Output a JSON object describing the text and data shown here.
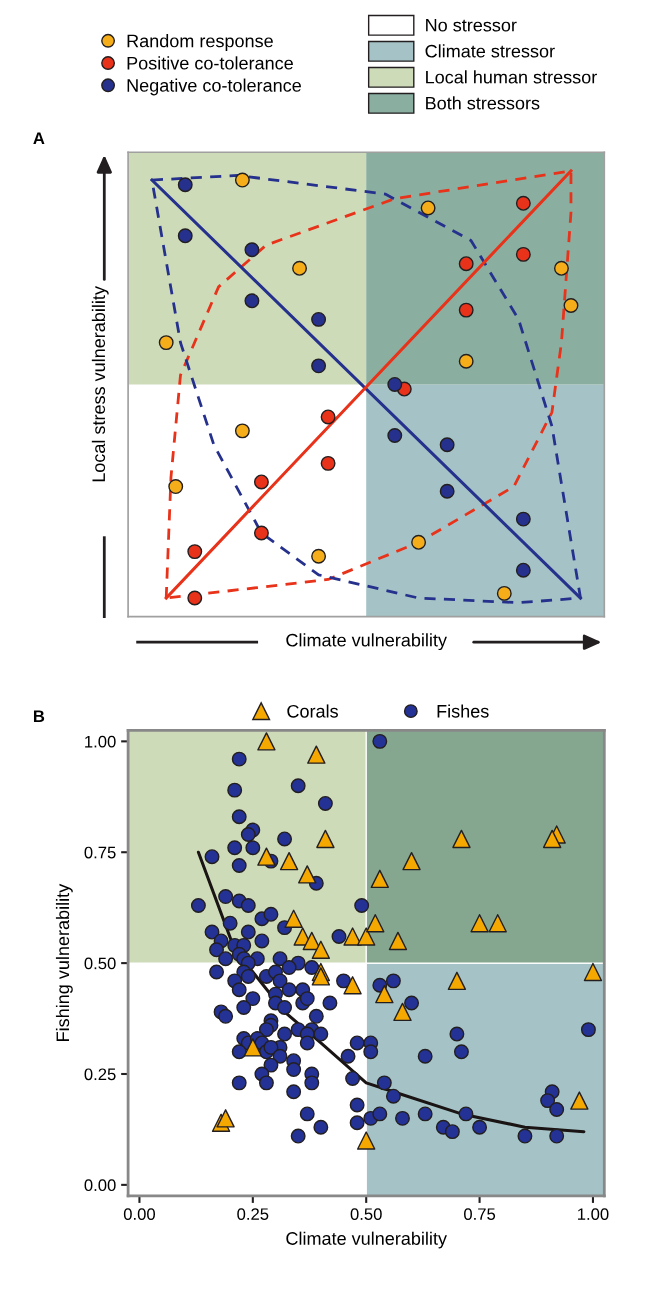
{
  "chart_data": [
    {
      "type": "other",
      "title": "A",
      "xlabel": "Climate vulnerability",
      "ylabel": "Local stress vulnerability",
      "legend": "top",
      "bands": [
        {
          "label": "No stressor",
          "color": "#ffffff"
        },
        {
          "label": "Climate stressor",
          "color": "#a5c3c6"
        },
        {
          "label": "Local human stressor",
          "color": "#cddbb9"
        },
        {
          "label": "Both stressors",
          "color": "#8aafa0"
        }
      ],
      "series": [
        {
          "name": "Random response",
          "color": "#f5ae1a",
          "marker": "circle"
        },
        {
          "name": "Positive co-tolerance",
          "color": "#e8321a",
          "marker": "circle"
        },
        {
          "name": "Negative co-tolerance",
          "color": "#25318c",
          "marker": "circle"
        }
      ]
    },
    {
      "type": "scatter",
      "title": "B",
      "xlabel": "Climate vulnerability",
      "ylabel": "Fishing vulnerability",
      "legend": "top",
      "grid": false,
      "xlim": [
        -0.025,
        1.025
      ],
      "ylim": [
        -0.025,
        1.025
      ],
      "xticks": [
        {
          "value": 0,
          "label": "0.00"
        },
        {
          "value": 0.25,
          "label": "0.25"
        },
        {
          "value": 0.5,
          "label": "0.50"
        },
        {
          "value": 0.75,
          "label": "0.75"
        },
        {
          "value": 1,
          "label": "1.00"
        }
      ],
      "yticks": [
        {
          "value": 0,
          "label": "0.00"
        },
        {
          "value": 0.25,
          "label": "0.25"
        },
        {
          "value": 0.5,
          "label": "0.50"
        },
        {
          "value": 0.75,
          "label": "0.75"
        },
        {
          "value": 1,
          "label": "1.00"
        }
      ],
      "bands": [
        {
          "axis": "x",
          "from": 0.5,
          "to": 1.025,
          "color": "#a5c3c6"
        },
        {
          "axis": "y",
          "from": 0.5,
          "to": 1.025,
          "color": "#cddbb9"
        }
      ],
      "series": [
        {
          "name": "Fishes",
          "color": "#233294",
          "marker": "circle",
          "x": [
            0.22,
            0.21,
            0.35,
            0.41,
            0.22,
            0.25,
            0.24,
            0.32,
            0.21,
            0.25,
            0.16,
            0.22,
            0.29,
            0.39,
            0.13,
            0.19,
            0.22,
            0.24,
            0.49,
            0.2,
            0.27,
            0.29,
            0.32,
            0.16,
            0.24,
            0.27,
            0.18,
            0.17,
            0.21,
            0.23,
            0.22,
            0.23,
            0.26,
            0.19,
            0.44,
            0.31,
            0.24,
            0.35,
            0.33,
            0.38,
            0.17,
            0.23,
            0.24,
            0.21,
            0.28,
            0.3,
            0.31,
            0.22,
            0.25,
            0.45,
            0.3,
            0.33,
            0.36,
            0.36,
            0.37,
            0.3,
            0.32,
            0.42,
            0.23,
            0.18,
            0.19,
            0.39,
            0.29,
            0.29,
            0.38,
            0.4,
            0.28,
            0.35,
            0.32,
            0.37,
            0.37,
            0.23,
            0.24,
            0.26,
            0.27,
            0.31,
            0.22,
            0.28,
            0.29,
            0.31,
            0.48,
            0.51,
            0.51,
            0.46,
            0.34,
            0.29,
            0.34,
            0.38,
            0.27,
            0.28,
            0.22,
            0.38,
            0.34,
            0.47,
            0.48,
            0.37,
            0.4,
            0.35,
            0.48,
            0.51,
            0.53,
            0.53,
            0.56,
            0.6,
            0.7,
            0.63,
            0.71,
            0.99,
            0.54,
            0.56,
            0.53,
            0.58,
            0.63,
            0.67,
            0.69,
            0.72,
            0.75,
            0.85,
            0.92,
            0.91,
            0.9,
            0.92
          ],
          "values": [
            0.96,
            0.89,
            0.9,
            0.86,
            0.83,
            0.8,
            0.79,
            0.78,
            0.76,
            0.76,
            0.74,
            0.72,
            0.73,
            0.68,
            0.63,
            0.65,
            0.64,
            0.63,
            0.63,
            0.59,
            0.6,
            0.61,
            0.58,
            0.57,
            0.57,
            0.55,
            0.55,
            0.53,
            0.54,
            0.54,
            0.52,
            0.51,
            0.51,
            0.51,
            0.56,
            0.51,
            0.5,
            0.5,
            0.49,
            0.49,
            0.48,
            0.48,
            0.47,
            0.46,
            0.47,
            0.48,
            0.46,
            0.44,
            0.42,
            0.46,
            0.43,
            0.44,
            0.44,
            0.41,
            0.42,
            0.41,
            0.4,
            0.41,
            0.4,
            0.39,
            0.38,
            0.38,
            0.37,
            0.36,
            0.35,
            0.34,
            0.35,
            0.35,
            0.34,
            0.34,
            0.32,
            0.33,
            0.32,
            0.33,
            0.32,
            0.31,
            0.3,
            0.3,
            0.31,
            0.29,
            0.32,
            0.32,
            0.3,
            0.29,
            0.28,
            0.27,
            0.26,
            0.25,
            0.25,
            0.23,
            0.23,
            0.23,
            0.21,
            0.24,
            0.18,
            0.16,
            0.13,
            0.11,
            0.14,
            0.15,
            1.0,
            0.45,
            0.46,
            0.41,
            0.34,
            0.29,
            0.3,
            0.35,
            0.23,
            0.2,
            0.16,
            0.15,
            0.16,
            0.13,
            0.12,
            0.16,
            0.13,
            0.11,
            0.11,
            0.21,
            0.19,
            0.17
          ]
        },
        {
          "name": "Corals",
          "color": "#f5a800",
          "marker": "triangle",
          "x": [
            0.28,
            0.39,
            0.41,
            0.28,
            0.33,
            0.37,
            0.34,
            0.36,
            0.38,
            0.4,
            0.47,
            0.5,
            0.4,
            0.4,
            0.47,
            0.25,
            0.18,
            0.19,
            0.5,
            0.53,
            0.6,
            0.71,
            0.92,
            0.91,
            0.52,
            0.57,
            0.75,
            0.79,
            0.7,
            1.0,
            0.54,
            0.58,
            0.97
          ],
          "values": [
            1.0,
            0.97,
            0.78,
            0.74,
            0.73,
            0.7,
            0.6,
            0.56,
            0.55,
            0.53,
            0.56,
            0.56,
            0.48,
            0.47,
            0.45,
            0.31,
            0.14,
            0.15,
            0.1,
            0.69,
            0.73,
            0.78,
            0.79,
            0.78,
            0.59,
            0.55,
            0.59,
            0.59,
            0.46,
            0.48,
            0.43,
            0.39,
            0.19
          ]
        },
        {
          "type": "line",
          "color": "#1a1414",
          "marker": "none",
          "line_style": "solid",
          "x": [
            0.13,
            0.21,
            0.25,
            0.32,
            0.4,
            0.5,
            0.56,
            0.71,
            0.85,
            0.98
          ],
          "values": [
            0.75,
            0.53,
            0.48,
            0.39,
            0.32,
            0.23,
            0.21,
            0.16,
            0.13,
            0.12
          ]
        }
      ]
    }
  ]
}
